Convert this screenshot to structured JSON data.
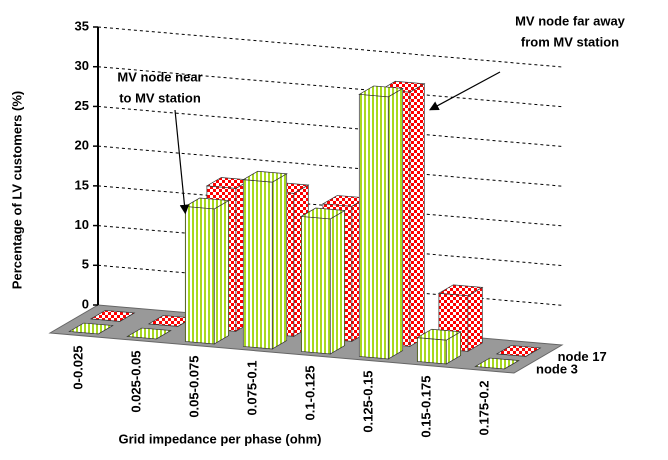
{
  "chart_data": {
    "type": "bar3d",
    "x_label": "Grid impedance per phase (ohm)",
    "y_label": "Percentage of LV customers (%)",
    "categories": [
      "0-0.025",
      "0.025-0.05",
      "0.05-0.075",
      "0.075-0.1",
      "0.1-0.125",
      "0.125-0.15",
      "0.15-0.175",
      "0.175-0.2"
    ],
    "series": [
      {
        "name": "node 3",
        "color": "#a8d820",
        "values": [
          0,
          0,
          17,
          21,
          17,
          33,
          3,
          0
        ]
      },
      {
        "name": "node 17",
        "color": "#ff0000",
        "values": [
          0,
          0,
          18,
          18,
          17,
          32,
          7,
          0
        ]
      }
    ],
    "ylim": [
      0,
      35
    ],
    "yticks": [
      0,
      5,
      10,
      15,
      20,
      25,
      30,
      35
    ],
    "grid": true,
    "annotations": [
      {
        "lines": [
          "MV node near",
          "to MV station"
        ]
      },
      {
        "lines": [
          "MV node far away",
          "from MV station"
        ]
      }
    ]
  }
}
